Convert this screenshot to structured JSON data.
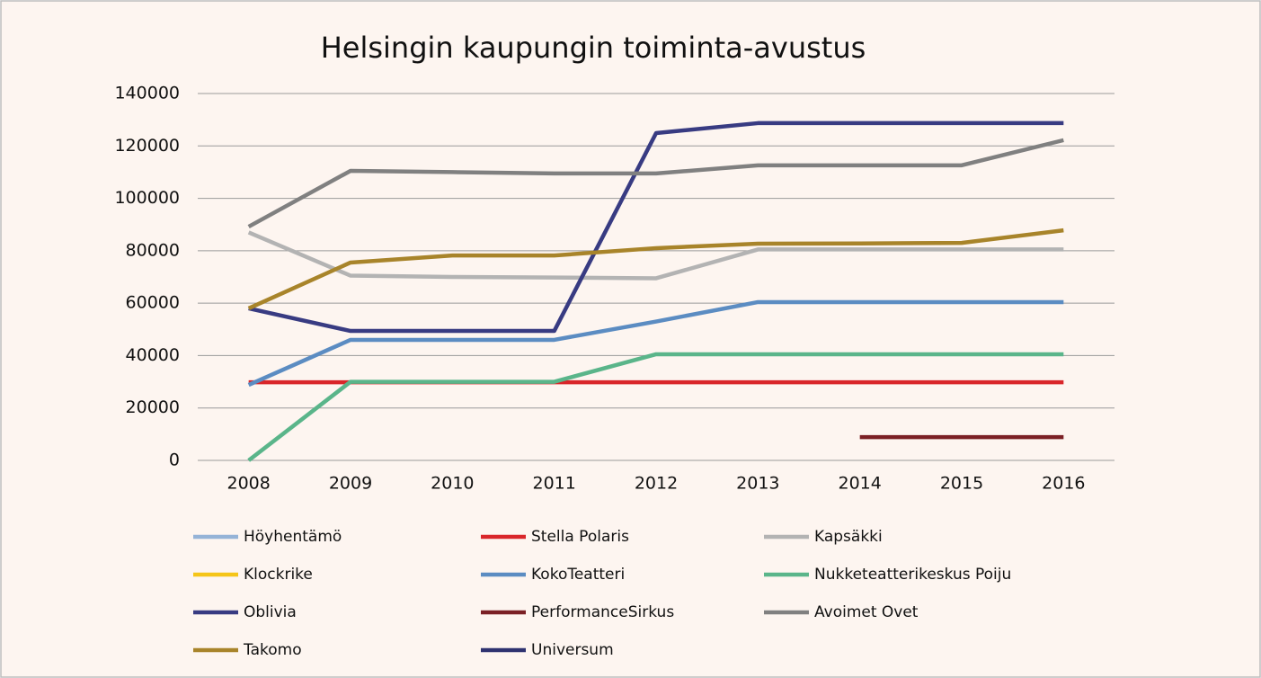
{
  "chart_data": {
    "type": "line",
    "title": "Helsingin kaupungin toiminta-avustus",
    "categories": [
      "2008",
      "2009",
      "2010",
      "2011",
      "2012",
      "2013",
      "2014",
      "2015",
      "2016"
    ],
    "ylim": [
      0,
      140000
    ],
    "yticks": [
      0,
      20000,
      40000,
      60000,
      80000,
      100000,
      120000,
      140000
    ],
    "grid": true,
    "series": [
      {
        "name": "Höyhentämö",
        "color": "#95b3d7",
        "values": [
          null,
          null,
          null,
          null,
          null,
          null,
          null,
          null,
          null
        ]
      },
      {
        "name": "Stella Polaris",
        "color": "#d9262a",
        "values": [
          29800,
          29800,
          29800,
          29800,
          29800,
          29800,
          29800,
          29800,
          29800
        ]
      },
      {
        "name": "Kapsäkki",
        "color": "#b3b3b3",
        "values": [
          87000,
          70500,
          70000,
          69800,
          69500,
          80500,
          80500,
          80500,
          80500
        ]
      },
      {
        "name": "Klockrike",
        "color": "#f5c518",
        "values": [
          null,
          null,
          null,
          null,
          null,
          null,
          null,
          null,
          null
        ]
      },
      {
        "name": "KokoTeatteri",
        "color": "#5b8cc2",
        "values": [
          28800,
          46000,
          46000,
          46000,
          53000,
          60400,
          60400,
          60400,
          60400
        ]
      },
      {
        "name": "Nukketeatterikeskus Poiju",
        "color": "#5ab58a",
        "values": [
          0,
          30000,
          30000,
          30000,
          40500,
          40500,
          40500,
          40500,
          40500
        ]
      },
      {
        "name": "Oblivia",
        "color": "#383b82",
        "values": [
          58000,
          49400,
          49400,
          49400,
          124900,
          128700,
          128700,
          128700,
          128700
        ]
      },
      {
        "name": "PerformanceSirkus",
        "color": "#7b2025",
        "values": [
          null,
          null,
          null,
          null,
          null,
          null,
          8900,
          8900,
          8900
        ]
      },
      {
        "name": "Avoimet Ovet",
        "color": "#808080",
        "values": [
          89200,
          110500,
          110000,
          109500,
          109500,
          112600,
          112600,
          112600,
          122200
        ]
      },
      {
        "name": "Takomo",
        "color": "#a8842a",
        "values": [
          58000,
          75500,
          78200,
          78200,
          81000,
          82700,
          82800,
          83000,
          87800
        ]
      },
      {
        "name": "Universum",
        "color": "#2e3270",
        "values": [
          null,
          null,
          null,
          null,
          null,
          null,
          null,
          null,
          null
        ]
      }
    ]
  }
}
